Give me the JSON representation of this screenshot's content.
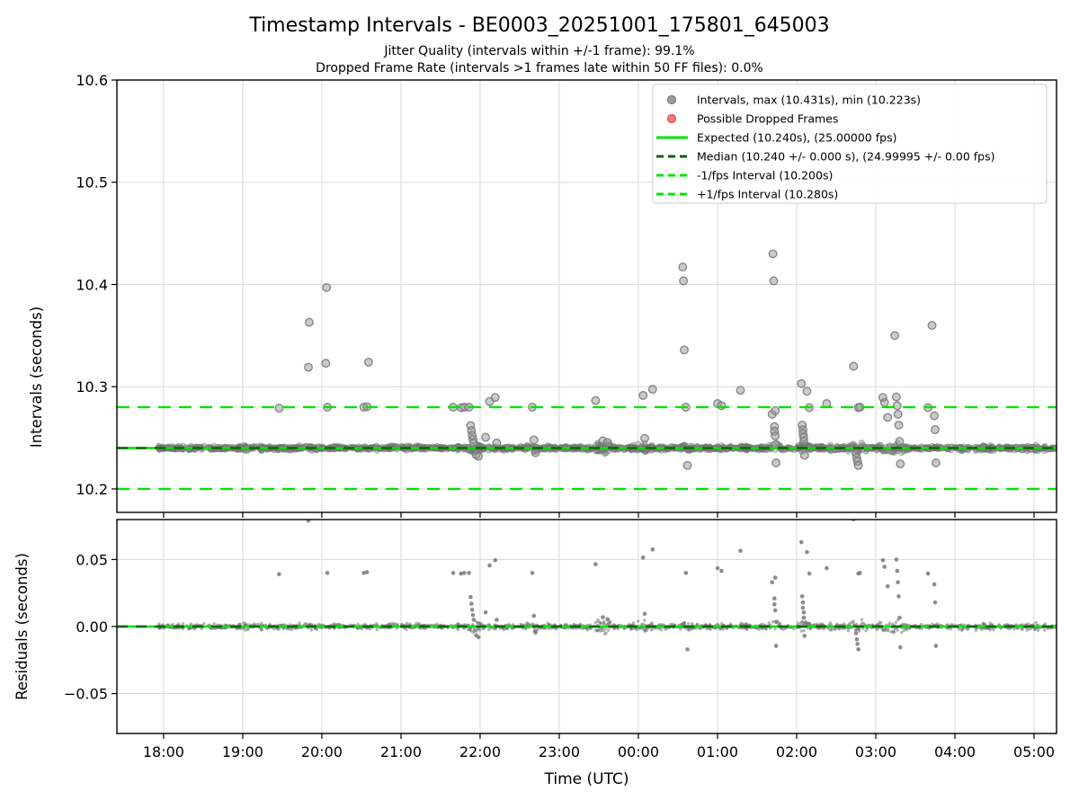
{
  "title": "Timestamp Intervals - BE0003_20251001_175801_645003",
  "subtitle_jitter": "Jitter Quality (intervals within +/-1 frame): 99.1%",
  "subtitle_dropped": "Dropped Frame Rate (intervals >1 frames late within 50 FF files): 0.0%",
  "stats": {
    "max_interval_s": 10.431,
    "min_interval_s": 10.223,
    "expected_interval_s": 10.24,
    "expected_fps": "25.00000",
    "median_interval_s": 10.24,
    "median_fps": "24.99995",
    "jitter_quality_pct": 99.1,
    "dropped_frame_rate_pct": 0.0
  },
  "chart_data": {
    "type": "scatter",
    "x_axis": {
      "label": "Time (UTC)",
      "tick_labels": [
        "18:00",
        "19:00",
        "20:00",
        "21:00",
        "22:00",
        "23:00",
        "00:00",
        "01:00",
        "02:00",
        "03:00",
        "04:00",
        "05:00"
      ],
      "tick_hours": [
        18,
        19,
        20,
        21,
        22,
        23,
        24,
        25,
        26,
        27,
        28,
        29
      ],
      "xlim": [
        17.41,
        29.284
      ],
      "grid": true
    },
    "top_plot": {
      "ylabel": "Intervals (seconds)",
      "ylim": [
        10.1771,
        10.6
      ],
      "ytick_values": [
        10.2,
        10.3,
        10.4,
        10.5,
        10.6
      ],
      "ytick_labels": [
        "10.2",
        "10.3",
        "10.4",
        "10.5",
        "10.6"
      ],
      "expected_line": 10.24,
      "median_line": 10.24,
      "minus_one_fps_line": 10.2,
      "plus_one_fps_line": 10.28,
      "band": {
        "t_start": 17.93,
        "t_end": 29.284,
        "center": 10.24,
        "sigma": 0.0015,
        "count": 1600
      },
      "bumps": [
        [
          21.9,
          0.05,
          1.6
        ],
        [
          22.08,
          0.05,
          1.1
        ],
        [
          22.67,
          0.04,
          0.9
        ],
        [
          23.57,
          0.09,
          1.4
        ],
        [
          24.05,
          0.07,
          1.1
        ],
        [
          24.6,
          0.04,
          0.7
        ],
        [
          25.72,
          0.04,
          1.4
        ],
        [
          26.08,
          0.05,
          1.4
        ],
        [
          26.45,
          0.04,
          0.7
        ],
        [
          26.78,
          0.07,
          1.3
        ],
        [
          27.15,
          0.09,
          1.8
        ],
        [
          27.3,
          0.05,
          1.3
        ],
        [
          28.25,
          0.12,
          0.7
        ],
        [
          29.05,
          0.1,
          0.5
        ]
      ],
      "outliers": [
        [
          19.46,
          10.279
        ],
        [
          19.83,
          10.319
        ],
        [
          19.84,
          10.363
        ],
        [
          20.05,
          10.323
        ],
        [
          20.06,
          10.397
        ],
        [
          20.07,
          10.28
        ],
        [
          20.53,
          10.28
        ],
        [
          20.57,
          10.2805
        ],
        [
          20.59,
          10.324
        ],
        [
          21.66,
          10.28
        ],
        [
          21.76,
          10.2795
        ],
        [
          21.8,
          10.28
        ],
        [
          21.86,
          10.28
        ],
        [
          21.88,
          10.262
        ],
        [
          21.89,
          10.257
        ],
        [
          21.9,
          10.2525
        ],
        [
          21.91,
          10.2485
        ],
        [
          21.92,
          10.245
        ],
        [
          21.95,
          10.2335
        ],
        [
          21.98,
          10.232
        ],
        [
          22.07,
          10.2505
        ],
        [
          22.12,
          10.2855
        ],
        [
          22.19,
          10.2895
        ],
        [
          22.21,
          10.245
        ],
        [
          22.66,
          10.28
        ],
        [
          22.68,
          10.248
        ],
        [
          22.7,
          10.2355
        ],
        [
          23.46,
          10.2865
        ],
        [
          23.55,
          10.247
        ],
        [
          23.61,
          10.2455
        ],
        [
          24.06,
          10.2915
        ],
        [
          24.08,
          10.2495
        ],
        [
          24.18,
          10.2975
        ],
        [
          24.56,
          10.417
        ],
        [
          24.57,
          10.4035
        ],
        [
          24.58,
          10.336
        ],
        [
          24.6,
          10.28
        ],
        [
          24.62,
          10.223
        ],
        [
          25.0,
          10.2835
        ],
        [
          25.05,
          10.2815
        ],
        [
          25.29,
          10.2965
        ],
        [
          25.69,
          10.273
        ],
        [
          25.7,
          10.43
        ],
        [
          25.71,
          10.4035
        ],
        [
          25.72,
          10.261
        ],
        [
          25.72,
          10.2565
        ],
        [
          25.73,
          10.252
        ],
        [
          25.73,
          10.2765
        ],
        [
          25.74,
          10.2435
        ],
        [
          25.74,
          10.2255
        ],
        [
          26.06,
          10.303
        ],
        [
          26.07,
          10.2625
        ],
        [
          26.08,
          10.258
        ],
        [
          26.08,
          10.254
        ],
        [
          26.09,
          10.2505
        ],
        [
          26.09,
          10.2465
        ],
        [
          26.1,
          10.233
        ],
        [
          26.13,
          10.2955
        ],
        [
          26.16,
          10.2795
        ],
        [
          26.38,
          10.2835
        ],
        [
          26.72,
          10.32
        ],
        [
          26.75,
          10.235
        ],
        [
          26.76,
          10.2305
        ],
        [
          26.77,
          10.227
        ],
        [
          26.78,
          10.223
        ],
        [
          26.78,
          10.2795
        ],
        [
          26.8,
          10.28
        ],
        [
          27.09,
          10.2895
        ],
        [
          27.11,
          10.2845
        ],
        [
          27.15,
          10.27
        ],
        [
          27.24,
          10.35
        ],
        [
          27.26,
          10.29
        ],
        [
          27.27,
          10.2815
        ],
        [
          27.28,
          10.273
        ],
        [
          27.29,
          10.2625
        ],
        [
          27.3,
          10.2465
        ],
        [
          27.31,
          10.2245
        ],
        [
          27.66,
          10.2795
        ],
        [
          27.71,
          10.36
        ],
        [
          27.74,
          10.2715
        ],
        [
          27.75,
          10.258
        ],
        [
          27.76,
          10.2255
        ]
      ]
    },
    "bottom_plot": {
      "ylabel": "Residuals (seconds)",
      "ylim": [
        -0.0798,
        0.0798
      ],
      "ytick_values": [
        -0.05,
        0.0,
        0.05
      ],
      "ytick_labels": [
        "−0.05",
        "0.00",
        "0.05"
      ],
      "zero_line": 0.0,
      "residual_reference_s": 10.24
    },
    "legend": [
      {
        "marker": "dot",
        "color": "#9c9c9c",
        "edge": "#7a7a7a",
        "label": "Intervals, max (10.431s), min (10.223s)"
      },
      {
        "marker": "dot",
        "color": "#f47b7b",
        "edge": "#d94f4f",
        "label": "Possible Dropped Frames"
      },
      {
        "marker": "line",
        "color": "#00e400",
        "edge": "#00e400",
        "label": "Expected (10.240s), (25.00000 fps)"
      },
      {
        "marker": "dashed",
        "color": "#006400",
        "edge": "#006400",
        "label": "Median (10.240 +/- 0.000 s), (24.99995 +/- 0.00 fps)"
      },
      {
        "marker": "dashed",
        "color": "#00e400",
        "edge": "#00e400",
        "label": "-1/fps Interval (10.200s)"
      },
      {
        "marker": "dashed",
        "color": "#00e400",
        "edge": "#00e400",
        "label": "+1/fps Interval (10.280s)"
      }
    ],
    "colors": {
      "expected_green": "#00e400",
      "median_dark_green": "#006400",
      "scatter_gray": "#8a8a8a",
      "dropped_red": "#f47b7b",
      "grid": "#d9d9d9",
      "spine": "#000000",
      "legend_border": "#cccccc",
      "background": "#ffffff"
    }
  }
}
